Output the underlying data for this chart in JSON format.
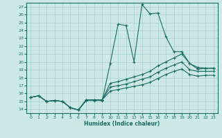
{
  "title": "",
  "xlabel": "Humidex (Indice chaleur)",
  "ylabel": "",
  "background_color": "#cce9e5",
  "grid_color": "#aacfcc",
  "line_color": "#1a6b62",
  "xlim": [
    -0.5,
    23.5
  ],
  "ylim": [
    13.5,
    27.5
  ],
  "yticks": [
    14,
    15,
    16,
    17,
    18,
    19,
    20,
    21,
    22,
    23,
    24,
    25,
    26,
    27
  ],
  "xticks": [
    0,
    1,
    2,
    3,
    4,
    5,
    6,
    7,
    8,
    9,
    10,
    11,
    12,
    13,
    14,
    15,
    16,
    17,
    18,
    19,
    20,
    21,
    22,
    23
  ],
  "lines": [
    {
      "x": [
        0,
        1,
        2,
        3,
        4,
        5,
        6,
        7,
        8,
        9,
        10,
        11,
        12,
        13,
        14,
        15,
        16,
        17,
        18,
        19,
        20,
        21,
        22,
        23
      ],
      "y": [
        15.5,
        15.7,
        15.0,
        15.1,
        15.0,
        14.2,
        13.9,
        15.1,
        15.1,
        15.1,
        19.8,
        24.8,
        24.6,
        20.0,
        27.3,
        26.1,
        26.2,
        23.2,
        21.3,
        21.3,
        19.8,
        19.1,
        19.2,
        19.2
      ]
    },
    {
      "x": [
        0,
        1,
        2,
        3,
        4,
        5,
        6,
        7,
        8,
        9,
        10,
        11,
        12,
        13,
        14,
        15,
        16,
        17,
        18,
        19,
        20,
        21,
        22,
        23
      ],
      "y": [
        15.5,
        15.7,
        15.0,
        15.1,
        15.0,
        14.2,
        13.9,
        15.2,
        15.2,
        15.2,
        17.3,
        17.5,
        17.8,
        18.1,
        18.4,
        18.8,
        19.5,
        20.0,
        20.5,
        21.0,
        19.8,
        19.3,
        19.2,
        19.2
      ]
    },
    {
      "x": [
        0,
        1,
        2,
        3,
        4,
        5,
        6,
        7,
        8,
        9,
        10,
        11,
        12,
        13,
        14,
        15,
        16,
        17,
        18,
        19,
        20,
        21,
        22,
        23
      ],
      "y": [
        15.5,
        15.7,
        15.0,
        15.1,
        15.0,
        14.2,
        13.9,
        15.2,
        15.2,
        15.2,
        16.8,
        17.0,
        17.2,
        17.5,
        17.8,
        18.1,
        18.7,
        19.2,
        19.6,
        20.0,
        19.0,
        18.8,
        18.8,
        18.8
      ]
    },
    {
      "x": [
        0,
        1,
        2,
        3,
        4,
        5,
        6,
        7,
        8,
        9,
        10,
        11,
        12,
        13,
        14,
        15,
        16,
        17,
        18,
        19,
        20,
        21,
        22,
        23
      ],
      "y": [
        15.5,
        15.7,
        15.0,
        15.1,
        15.0,
        14.2,
        13.9,
        15.2,
        15.2,
        15.2,
        16.3,
        16.5,
        16.7,
        16.9,
        17.1,
        17.4,
        17.9,
        18.4,
        18.8,
        19.1,
        18.4,
        18.2,
        18.3,
        18.3
      ]
    }
  ]
}
